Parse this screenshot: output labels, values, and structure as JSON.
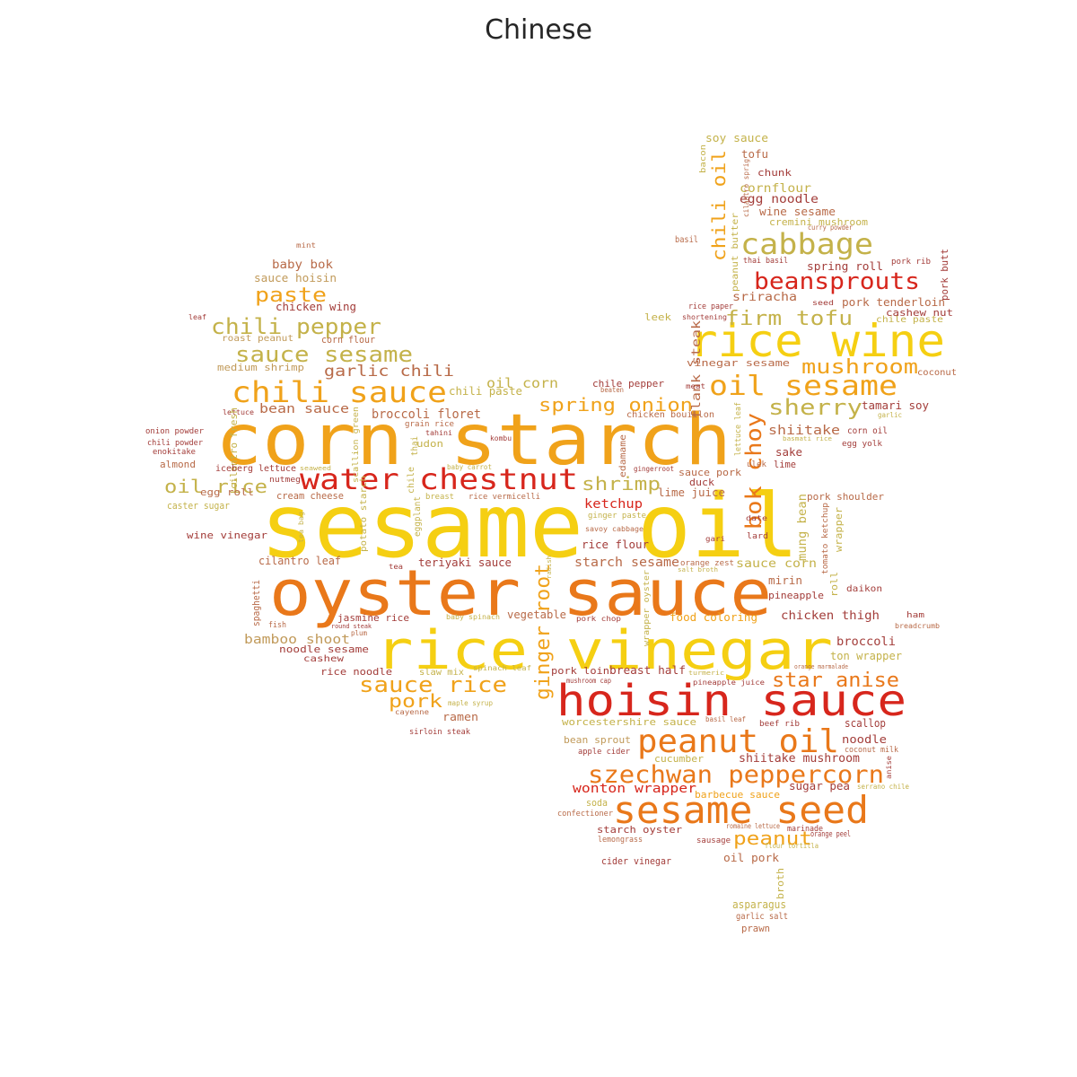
{
  "title": "Chinese",
  "colors": {
    "red": "#d7261c",
    "orange": "#e9781a",
    "amber": "#f0a21a",
    "yellow": "#f5cf12",
    "olive": "#c4b24a",
    "tan": "#c19a5a",
    "brown": "#b86a48",
    "maroon": "#a33d3a"
  },
  "words": [
    {
      "text": "sesame oil",
      "color": "yellow"
    },
    {
      "text": "corn starch",
      "color": "amber"
    },
    {
      "text": "oyster sauce",
      "color": "orange"
    },
    {
      "text": "rice vinegar",
      "color": "yellow"
    },
    {
      "text": "hoisin sauce",
      "color": "red"
    },
    {
      "text": "rice wine",
      "color": "yellow"
    },
    {
      "text": "sesame seed",
      "color": "orange"
    },
    {
      "text": "water chestnut",
      "color": "red"
    },
    {
      "text": "peanut oil",
      "color": "orange"
    },
    {
      "text": "chili sauce",
      "color": "amber"
    },
    {
      "text": "oil sesame",
      "color": "amber"
    },
    {
      "text": "szechwan peppercorn",
      "color": "orange"
    },
    {
      "text": "cabbage",
      "color": "olive"
    },
    {
      "text": "beansprouts",
      "color": "red"
    },
    {
      "text": "chili pepper",
      "color": "olive"
    },
    {
      "text": "sauce sesame",
      "color": "olive"
    },
    {
      "text": "sauce rice",
      "color": "amber"
    },
    {
      "text": "bok choy",
      "color": "orange"
    },
    {
      "text": "paste",
      "color": "amber"
    },
    {
      "text": "mushroom",
      "color": "amber"
    },
    {
      "text": "sherry",
      "color": "olive"
    },
    {
      "text": "firm tofu",
      "color": "olive"
    },
    {
      "text": "star anise",
      "color": "orange"
    },
    {
      "text": "ginger root",
      "color": "amber"
    },
    {
      "text": "spring onion",
      "color": "amber"
    },
    {
      "text": "shrimp",
      "color": "olive"
    },
    {
      "text": "oil rice",
      "color": "olive"
    },
    {
      "text": "peanut",
      "color": "amber"
    },
    {
      "text": "chili oil",
      "color": "amber"
    },
    {
      "text": "pork",
      "color": "amber"
    },
    {
      "text": "garlic chili",
      "color": "brown"
    },
    {
      "text": "wonton wrapper",
      "color": "red"
    },
    {
      "text": "shiitake",
      "color": "brown"
    },
    {
      "text": "broccoli floret",
      "color": "brown"
    },
    {
      "text": "bamboo shoot",
      "color": "tan"
    },
    {
      "text": "mung bean",
      "color": "olive"
    },
    {
      "text": "ketchup",
      "color": "red"
    },
    {
      "text": "starch sesame",
      "color": "brown"
    },
    {
      "text": "chicken thigh",
      "color": "maroon"
    },
    {
      "text": "broccoli",
      "color": "maroon"
    },
    {
      "text": "oil corn",
      "color": "olive"
    },
    {
      "text": "bean sauce",
      "color": "brown"
    },
    {
      "text": "cornflour",
      "color": "olive"
    },
    {
      "text": "sriracha",
      "color": "brown"
    },
    {
      "text": "shiitake mushroom",
      "color": "maroon"
    },
    {
      "text": "pork tenderloin",
      "color": "brown"
    },
    {
      "text": "spring roll",
      "color": "maroon"
    },
    {
      "text": "sauce corn",
      "color": "olive"
    },
    {
      "text": "ramen",
      "color": "brown"
    },
    {
      "text": "sugar pea",
      "color": "maroon"
    },
    {
      "text": "noodle",
      "color": "maroon"
    },
    {
      "text": "scallop",
      "color": "maroon"
    },
    {
      "text": "egg noodle",
      "color": "maroon"
    },
    {
      "text": "wine sesame",
      "color": "brown"
    },
    {
      "text": "baby bok",
      "color": "brown"
    },
    {
      "text": "sauce hoisin",
      "color": "tan"
    },
    {
      "text": "chicken wing",
      "color": "maroon"
    },
    {
      "text": "roast peanut",
      "color": "tan"
    },
    {
      "text": "corn flour",
      "color": "brown"
    },
    {
      "text": "medium shrimp",
      "color": "tan"
    },
    {
      "text": "chili paste",
      "color": "olive"
    },
    {
      "text": "chile pepper",
      "color": "maroon"
    },
    {
      "text": "chicken bouillon",
      "color": "brown"
    },
    {
      "text": "vinegar sesame",
      "color": "brown"
    },
    {
      "text": "flank steak",
      "color": "brown"
    },
    {
      "text": "leek",
      "color": "olive"
    },
    {
      "text": "shortening",
      "color": "maroon"
    },
    {
      "text": "rice paper",
      "color": "maroon"
    },
    {
      "text": "thai basil",
      "color": "maroon"
    },
    {
      "text": "basil",
      "color": "brown"
    },
    {
      "text": "soy sauce",
      "color": "olive"
    },
    {
      "text": "tofu",
      "color": "brown"
    },
    {
      "text": "chunk",
      "color": "maroon"
    },
    {
      "text": "cremini mushroom",
      "color": "olive"
    },
    {
      "text": "curry powder",
      "color": "brown"
    },
    {
      "text": "bacon",
      "color": "olive"
    },
    {
      "text": "cilantro sprig",
      "color": "brown"
    },
    {
      "text": "peanut butter",
      "color": "olive"
    },
    {
      "text": "pork rib",
      "color": "maroon"
    },
    {
      "text": "pork butt",
      "color": "maroon"
    },
    {
      "text": "seed",
      "color": "maroon"
    },
    {
      "text": "chile paste",
      "color": "olive"
    },
    {
      "text": "cashew nut",
      "color": "maroon"
    },
    {
      "text": "coconut",
      "color": "brown"
    },
    {
      "text": "tamari soy",
      "color": "maroon"
    },
    {
      "text": "garlic",
      "color": "olive"
    },
    {
      "text": "corn oil",
      "color": "maroon"
    },
    {
      "text": "egg yolk",
      "color": "maroon"
    },
    {
      "text": "basmati rice",
      "color": "olive"
    },
    {
      "text": "lettuce leaf",
      "color": "olive"
    },
    {
      "text": "meat",
      "color": "maroon"
    },
    {
      "text": "beaten",
      "color": "brown"
    },
    {
      "text": "sake",
      "color": "maroon"
    },
    {
      "text": "lime",
      "color": "maroon"
    },
    {
      "text": "ulek",
      "color": "brown"
    },
    {
      "text": "duck",
      "color": "maroon"
    },
    {
      "text": "sauce pork",
      "color": "brown"
    },
    {
      "text": "lime juice",
      "color": "brown"
    },
    {
      "text": "gingerroot",
      "color": "maroon"
    },
    {
      "text": "edamame",
      "color": "brown"
    },
    {
      "text": "kombu",
      "color": "maroon"
    },
    {
      "text": "grain rice",
      "color": "brown"
    },
    {
      "text": "udon",
      "color": "olive"
    },
    {
      "text": "chile",
      "color": "olive"
    },
    {
      "text": "thai",
      "color": "olive"
    },
    {
      "text": "scallion green",
      "color": "olive"
    },
    {
      "text": "tahini",
      "color": "maroon"
    },
    {
      "text": "baby carrot",
      "color": "olive"
    },
    {
      "text": "breast",
      "color": "olive"
    },
    {
      "text": "rice vermicelli",
      "color": "brown"
    },
    {
      "text": "eggplant",
      "color": "olive"
    },
    {
      "text": "potato starch",
      "color": "olive"
    },
    {
      "text": "ginger paste",
      "color": "olive"
    },
    {
      "text": "savoy cabbage",
      "color": "brown"
    },
    {
      "text": "date",
      "color": "maroon"
    },
    {
      "text": "gari",
      "color": "maroon"
    },
    {
      "text": "lard",
      "color": "maroon"
    },
    {
      "text": "pork shoulder",
      "color": "brown"
    },
    {
      "text": "tomato ketchup",
      "color": "brown"
    },
    {
      "text": "wrapper",
      "color": "olive"
    },
    {
      "text": "roll",
      "color": "olive"
    },
    {
      "text": "rice flour",
      "color": "maroon"
    },
    {
      "text": "orange zest",
      "color": "brown"
    },
    {
      "text": "salt broth",
      "color": "olive"
    },
    {
      "text": "mirin",
      "color": "brown"
    },
    {
      "text": "pineapple",
      "color": "maroon"
    },
    {
      "text": "daikon",
      "color": "maroon"
    },
    {
      "text": "ham",
      "color": "maroon"
    },
    {
      "text": "breadcrumb",
      "color": "brown"
    },
    {
      "text": "food coloring",
      "color": "amber"
    },
    {
      "text": "pork chop",
      "color": "maroon"
    },
    {
      "text": "wrapper oyster",
      "color": "olive"
    },
    {
      "text": "ton wrapper",
      "color": "olive"
    },
    {
      "text": "orange marmalade",
      "color": "brown"
    },
    {
      "text": "turmeric",
      "color": "olive"
    },
    {
      "text": "pineapple juice",
      "color": "maroon"
    },
    {
      "text": "mushroom cap",
      "color": "maroon"
    },
    {
      "text": "pork loin",
      "color": "maroon"
    },
    {
      "text": "breast half",
      "color": "maroon"
    },
    {
      "text": "vegetable",
      "color": "brown"
    },
    {
      "text": "baby spinach",
      "color": "olive"
    },
    {
      "text": "spinach leaf",
      "color": "olive"
    },
    {
      "text": "slaw mix",
      "color": "olive"
    },
    {
      "text": "jasmine rice",
      "color": "maroon"
    },
    {
      "text": "noodle sesame",
      "color": "maroon"
    },
    {
      "text": "cashew",
      "color": "maroon"
    },
    {
      "text": "rice noodle",
      "color": "maroon"
    },
    {
      "text": "teriyaki sauce",
      "color": "maroon"
    },
    {
      "text": "tea",
      "color": "maroon"
    },
    {
      "text": "radish",
      "color": "olive"
    },
    {
      "text": "cilantro leaf",
      "color": "brown"
    },
    {
      "text": "spaghetti",
      "color": "brown"
    },
    {
      "text": "fish",
      "color": "brown"
    },
    {
      "text": "round steak",
      "color": "maroon"
    },
    {
      "text": "plum",
      "color": "brown"
    },
    {
      "text": "maple syrup",
      "color": "olive"
    },
    {
      "text": "cayenne",
      "color": "brown"
    },
    {
      "text": "sirloin steak",
      "color": "maroon"
    },
    {
      "text": "worcestershire sauce",
      "color": "olive"
    },
    {
      "text": "bean sprout",
      "color": "tan"
    },
    {
      "text": "apple cider",
      "color": "maroon"
    },
    {
      "text": "cucumber",
      "color": "olive"
    },
    {
      "text": "basil leaf",
      "color": "brown"
    },
    {
      "text": "beef rib",
      "color": "maroon"
    },
    {
      "text": "coconut milk",
      "color": "brown"
    },
    {
      "text": "anise",
      "color": "maroon"
    },
    {
      "text": "serrano chile",
      "color": "olive"
    },
    {
      "text": "barbecue sauce",
      "color": "amber"
    },
    {
      "text": "soda",
      "color": "olive"
    },
    {
      "text": "confectioner",
      "color": "brown"
    },
    {
      "text": "starch oyster",
      "color": "maroon"
    },
    {
      "text": "lemongrass",
      "color": "brown"
    },
    {
      "text": "romaine lettuce",
      "color": "brown"
    },
    {
      "text": "sausage",
      "color": "maroon"
    },
    {
      "text": "marinade",
      "color": "maroon"
    },
    {
      "text": "orange peel",
      "color": "maroon"
    },
    {
      "text": "flour tortilla",
      "color": "olive"
    },
    {
      "text": "cider vinegar",
      "color": "maroon"
    },
    {
      "text": "oil pork",
      "color": "brown"
    },
    {
      "text": "broth",
      "color": "olive"
    },
    {
      "text": "asparagus",
      "color": "olive"
    },
    {
      "text": "garlic salt",
      "color": "brown"
    },
    {
      "text": "prawn",
      "color": "brown"
    },
    {
      "text": "mint",
      "color": "brown"
    },
    {
      "text": "leaf",
      "color": "maroon"
    },
    {
      "text": "lettuce",
      "color": "maroon"
    },
    {
      "text": "onion powder",
      "color": "maroon"
    },
    {
      "text": "chili powder",
      "color": "maroon"
    },
    {
      "text": "enokitake",
      "color": "maroon"
    },
    {
      "text": "almond",
      "color": "brown"
    },
    {
      "text": "fresh",
      "color": "olive"
    },
    {
      "text": "cilantro",
      "color": "olive"
    },
    {
      "text": "iceberg lettuce",
      "color": "maroon"
    },
    {
      "text": "seaweed",
      "color": "olive"
    },
    {
      "text": "nutmeg",
      "color": "maroon"
    },
    {
      "text": "tea bag",
      "color": "olive"
    },
    {
      "text": "cream cheese",
      "color": "brown"
    },
    {
      "text": "caster sugar",
      "color": "olive"
    },
    {
      "text": "egg roll",
      "color": "brown"
    },
    {
      "text": "wine vinegar",
      "color": "maroon"
    }
  ]
}
